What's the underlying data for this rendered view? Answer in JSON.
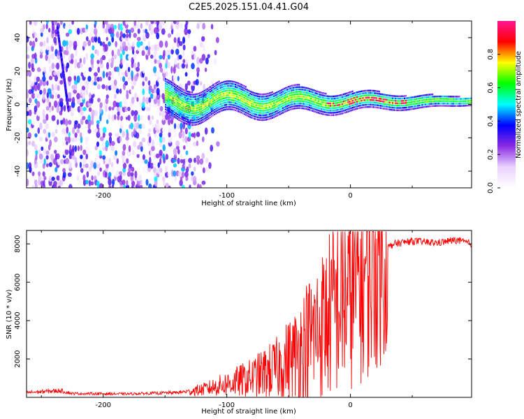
{
  "figure_title": "C2E5.2025.151.04.41.G04",
  "chart_data": [
    {
      "type": "heatmap",
      "xlabel": "Height of straight line (km)",
      "ylabel": "Frequency (Hz)",
      "xlim": [
        -262,
        98
      ],
      "ylim": [
        -50,
        50
      ],
      "x_ticks": [
        -200,
        -100,
        0
      ],
      "y_ticks": [
        -40,
        -20,
        0,
        20,
        40
      ],
      "colorbar": {
        "label": "Normalized spectral amplitude",
        "range": [
          0,
          1
        ],
        "ticks": [
          0.0,
          0.2,
          0.4,
          0.6,
          0.8
        ],
        "colormap": [
          "#ffffff",
          "#ead2ff",
          "#8a2be2",
          "#0000ff",
          "#00ffff",
          "#00ff00",
          "#ffff00",
          "#ff0000",
          "#ff1493"
        ]
      },
      "features": [
        {
          "kind": "noise",
          "x": [
            -262,
            -105
          ],
          "y": [
            -50,
            50
          ],
          "level": 0.3
        },
        {
          "kind": "streak",
          "x": [
            -237,
            -228
          ],
          "y": [
            20,
            -30
          ],
          "level": 0.25
        },
        {
          "kind": "signal_band",
          "x": [
            -150,
            98
          ],
          "center_freq": 0,
          "level": 0.6
        }
      ]
    },
    {
      "type": "line",
      "xlabel": "Height of straight line (km)",
      "ylabel": "SNR (10 * v/v)",
      "xlim": [
        -262,
        98
      ],
      "ylim": [
        0,
        8700
      ],
      "x_ticks": [
        -200,
        -100,
        0
      ],
      "y_ticks": [
        2000,
        4000,
        6000,
        8000
      ],
      "line_color": "#ff0000",
      "profile": [
        {
          "x": -262,
          "y": 250
        },
        {
          "x": -235,
          "y": 350
        },
        {
          "x": -225,
          "y": 200
        },
        {
          "x": -180,
          "y": 180
        },
        {
          "x": -140,
          "y": 250
        },
        {
          "x": -120,
          "y": 400
        },
        {
          "x": -100,
          "y": 700
        },
        {
          "x": -80,
          "y": 1000
        },
        {
          "x": -60,
          "y": 1500
        },
        {
          "x": -45,
          "y": 2200
        },
        {
          "x": -35,
          "y": 3000
        },
        {
          "x": -25,
          "y": 3600
        },
        {
          "x": -15,
          "y": 4500
        },
        {
          "x": -5,
          "y": 5200
        },
        {
          "x": 5,
          "y": 5800
        },
        {
          "x": 15,
          "y": 6500
        },
        {
          "x": 25,
          "y": 7600
        },
        {
          "x": 35,
          "y": 8000
        },
        {
          "x": 50,
          "y": 8150
        },
        {
          "x": 70,
          "y": 8050
        },
        {
          "x": 85,
          "y": 8200
        },
        {
          "x": 98,
          "y": 8000
        }
      ]
    }
  ]
}
